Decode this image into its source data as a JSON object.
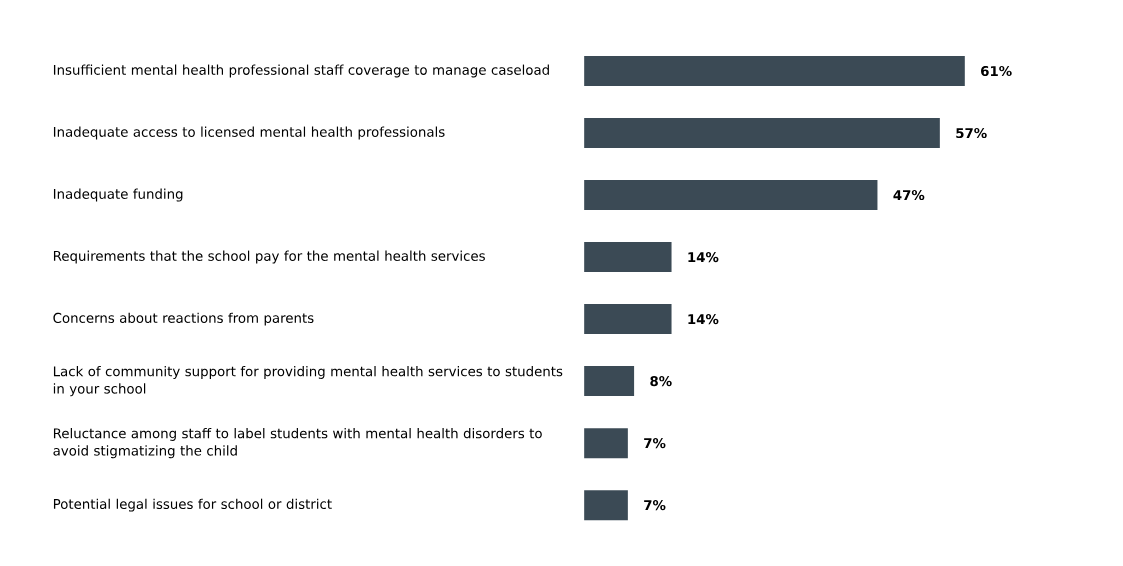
{
  "chart_data": {
    "type": "bar",
    "orientation": "horizontal",
    "categories": [
      "Insufficient mental health professional staff coverage to manage caseload",
      "Inadequate access to licensed mental health professionals",
      "Inadequate funding",
      "Requirements that the school pay for the mental health services",
      "Concerns about reactions from parents",
      "Lack of community support for providing mental health services to students in your school",
      "Reluctance among staff to label students with mental health disorders to avoid stigmatizing the child",
      "Potential legal issues for school or district"
    ],
    "values": [
      61,
      57,
      47,
      14,
      14,
      8,
      7,
      7
    ],
    "value_labels": [
      "61%",
      "57%",
      "47%",
      "14%",
      "14%",
      "8%",
      "7%",
      "7%"
    ],
    "color": "#3b4a55",
    "tick_labels": "y"
  }
}
